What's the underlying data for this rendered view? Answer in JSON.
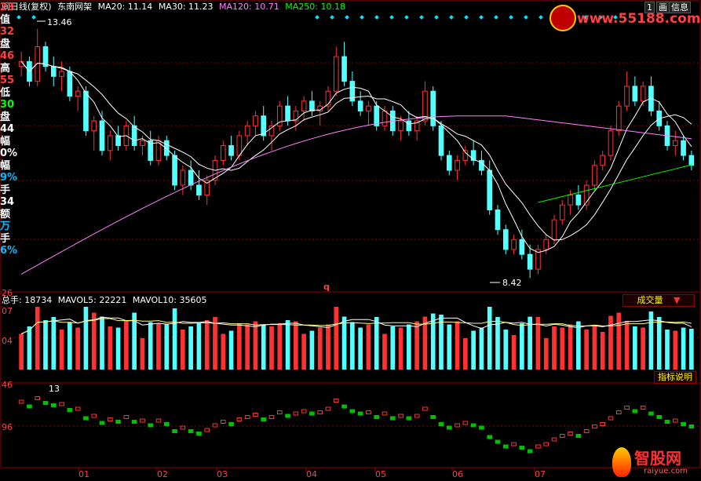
{
  "header": {
    "period": "日线(复权)",
    "stock_name": "东南网架",
    "ma20": "MA20: 11.14",
    "ma30": "MA30: 11.23",
    "ma120": "MA120: 10.71",
    "ma250": "MA250: 10.18",
    "prefix_glyph": "间"
  },
  "top_buttons": {
    "left": "1",
    "right": "信息",
    "extra": "画"
  },
  "watermark": "www.55188.com",
  "price_panel": {
    "high_label": "13.46",
    "low_label": "8.42",
    "q_mark": "q",
    "bottom_tick": "26"
  },
  "left_info": [
    {
      "text": "23",
      "color": "#ff4040"
    },
    {
      "text": "值",
      "color": "#ffffff"
    },
    {
      "text": "32",
      "color": "#ff4040"
    },
    {
      "text": "盘",
      "color": "#ffffff"
    },
    {
      "text": "46",
      "color": "#ff4040"
    },
    {
      "text": "高",
      "color": "#ffffff"
    },
    {
      "text": "55",
      "color": "#ff4040"
    },
    {
      "text": "低",
      "color": "#ffffff"
    },
    {
      "text": "30",
      "color": "#00ff00"
    },
    {
      "text": "盘",
      "color": "#ffffff"
    },
    {
      "text": "44",
      "color": "#ffffff"
    },
    {
      "text": "幅",
      "color": "#ffffff"
    },
    {
      "text": "0%",
      "color": "#ffffff"
    },
    {
      "text": "幅",
      "color": "#ffffff"
    },
    {
      "text": "9%",
      "color": "#00bfff"
    },
    {
      "text": "手",
      "color": "#ffffff"
    },
    {
      "text": "34",
      "color": "#ffffff"
    },
    {
      "text": "额",
      "color": "#ffffff"
    },
    {
      "text": "万",
      "color": "#00bfff"
    },
    {
      "text": "手",
      "color": "#ffffff"
    },
    {
      "text": "6%",
      "color": "#00bfff"
    }
  ],
  "volume_panel": {
    "total_hands": "总手: 18734",
    "mavol5": "MAVOL5: 22221",
    "mavol10": "MAVOL10: 35605",
    "indicator_select": "成交量",
    "indicator_help": "指标说明",
    "tick_top": "07",
    "tick_mid": "04"
  },
  "lower_panel": {
    "tick_top": "46",
    "tick_mid": "96",
    "high_label": "13"
  },
  "x_axis": [
    "01",
    "02",
    "03",
    "04",
    "05",
    "06",
    "07"
  ],
  "logo": {
    "name": "智股网",
    "url": "raiyue.com"
  },
  "colors": {
    "up": "#ff3232",
    "down": "#54ffff",
    "ma20": "#ffffff",
    "ma30": "#ffffff",
    "ma120": "#ff80ff",
    "ma250": "#00ff00",
    "grid": "#8b0000"
  },
  "chart_data": {
    "type": "candlestick",
    "price_high": 13.46,
    "price_low": 8.42,
    "candles": [
      [
        12.7,
        13.0,
        12.5,
        12.8
      ],
      [
        12.8,
        12.9,
        12.3,
        12.4
      ],
      [
        12.4,
        13.46,
        12.3,
        13.1
      ],
      [
        13.1,
        13.2,
        12.6,
        12.7
      ],
      [
        12.7,
        12.9,
        12.3,
        12.5
      ],
      [
        12.5,
        12.8,
        12.2,
        12.6
      ],
      [
        12.6,
        12.7,
        12.0,
        12.1
      ],
      [
        12.1,
        12.3,
        11.8,
        12.2
      ],
      [
        12.2,
        12.3,
        11.3,
        11.4
      ],
      [
        11.4,
        11.7,
        11.0,
        11.6
      ],
      [
        11.6,
        11.8,
        10.9,
        11.0
      ],
      [
        11.0,
        11.4,
        10.8,
        11.3
      ],
      [
        11.3,
        11.5,
        11.0,
        11.1
      ],
      [
        11.1,
        11.6,
        11.0,
        11.5
      ],
      [
        11.5,
        11.7,
        11.0,
        11.1
      ],
      [
        11.1,
        11.3,
        10.9,
        11.2
      ],
      [
        11.2,
        11.4,
        10.7,
        10.8
      ],
      [
        10.8,
        11.3,
        10.7,
        11.2
      ],
      [
        11.2,
        11.3,
        10.8,
        10.9
      ],
      [
        10.9,
        11.0,
        10.2,
        10.3
      ],
      [
        10.3,
        10.7,
        10.1,
        10.6
      ],
      [
        10.6,
        10.8,
        10.2,
        10.3
      ],
      [
        10.3,
        10.6,
        10.0,
        10.1
      ],
      [
        10.1,
        10.5,
        9.9,
        10.4
      ],
      [
        10.4,
        10.9,
        10.3,
        10.8
      ],
      [
        10.8,
        11.2,
        10.7,
        11.1
      ],
      [
        11.1,
        11.3,
        10.8,
        10.9
      ],
      [
        10.9,
        11.4,
        10.8,
        11.3
      ],
      [
        11.3,
        11.6,
        11.1,
        11.5
      ],
      [
        11.5,
        11.8,
        11.3,
        11.7
      ],
      [
        11.7,
        11.9,
        11.2,
        11.3
      ],
      [
        11.3,
        11.6,
        11.0,
        11.5
      ],
      [
        11.5,
        12.0,
        11.4,
        11.9
      ],
      [
        11.9,
        12.1,
        11.5,
        11.6
      ],
      [
        11.6,
        11.9,
        11.4,
        11.8
      ],
      [
        11.8,
        12.1,
        11.6,
        12.0
      ],
      [
        12.0,
        12.2,
        11.7,
        11.8
      ],
      [
        11.8,
        12.0,
        11.5,
        11.9
      ],
      [
        11.9,
        12.3,
        11.8,
        12.2
      ],
      [
        12.2,
        13.1,
        12.1,
        12.9
      ],
      [
        12.9,
        13.2,
        12.3,
        12.4
      ],
      [
        12.4,
        12.6,
        11.9,
        12.0
      ],
      [
        12.0,
        12.2,
        11.7,
        11.8
      ],
      [
        11.8,
        12.0,
        11.5,
        11.9
      ],
      [
        11.9,
        12.0,
        11.4,
        11.5
      ],
      [
        11.5,
        11.9,
        11.4,
        11.8
      ],
      [
        11.8,
        11.9,
        11.3,
        11.4
      ],
      [
        11.4,
        11.7,
        11.2,
        11.6
      ],
      [
        11.6,
        11.8,
        11.3,
        11.4
      ],
      [
        11.4,
        11.7,
        11.2,
        11.6
      ],
      [
        11.6,
        12.4,
        11.5,
        12.2
      ],
      [
        12.2,
        12.3,
        11.4,
        11.5
      ],
      [
        11.5,
        11.6,
        10.8,
        10.9
      ],
      [
        10.9,
        11.0,
        10.5,
        10.6
      ],
      [
        10.6,
        10.9,
        10.4,
        10.8
      ],
      [
        10.8,
        11.1,
        10.7,
        11.0
      ],
      [
        11.0,
        11.2,
        10.7,
        10.8
      ],
      [
        10.8,
        11.0,
        10.5,
        10.6
      ],
      [
        10.6,
        10.8,
        9.7,
        9.8
      ],
      [
        9.8,
        9.9,
        9.3,
        9.4
      ],
      [
        9.4,
        9.5,
        8.9,
        9.0
      ],
      [
        9.0,
        9.3,
        8.9,
        9.2
      ],
      [
        9.2,
        9.4,
        8.8,
        8.9
      ],
      [
        8.9,
        9.1,
        8.42,
        8.6
      ],
      [
        8.6,
        9.1,
        8.5,
        9.0
      ],
      [
        9.0,
        9.3,
        8.9,
        9.2
      ],
      [
        9.2,
        9.7,
        9.1,
        9.6
      ],
      [
        9.6,
        10.0,
        9.5,
        9.9
      ],
      [
        9.9,
        10.2,
        9.7,
        10.1
      ],
      [
        10.1,
        10.3,
        9.8,
        9.9
      ],
      [
        9.9,
        10.4,
        9.8,
        10.3
      ],
      [
        10.3,
        10.8,
        10.2,
        10.7
      ],
      [
        10.7,
        11.0,
        10.6,
        10.9
      ],
      [
        10.9,
        11.5,
        10.8,
        11.4
      ],
      [
        11.4,
        12.0,
        11.3,
        11.9
      ],
      [
        11.9,
        12.6,
        11.8,
        12.3
      ],
      [
        12.3,
        12.5,
        11.9,
        12.0
      ],
      [
        12.0,
        12.4,
        11.9,
        12.3
      ],
      [
        12.3,
        12.5,
        11.7,
        11.8
      ],
      [
        11.8,
        12.0,
        11.4,
        11.5
      ],
      [
        11.5,
        11.6,
        11.0,
        11.1
      ],
      [
        11.1,
        11.4,
        10.9,
        11.2
      ],
      [
        11.2,
        11.3,
        10.8,
        10.9
      ],
      [
        10.9,
        11.0,
        10.6,
        10.7
      ]
    ]
  }
}
